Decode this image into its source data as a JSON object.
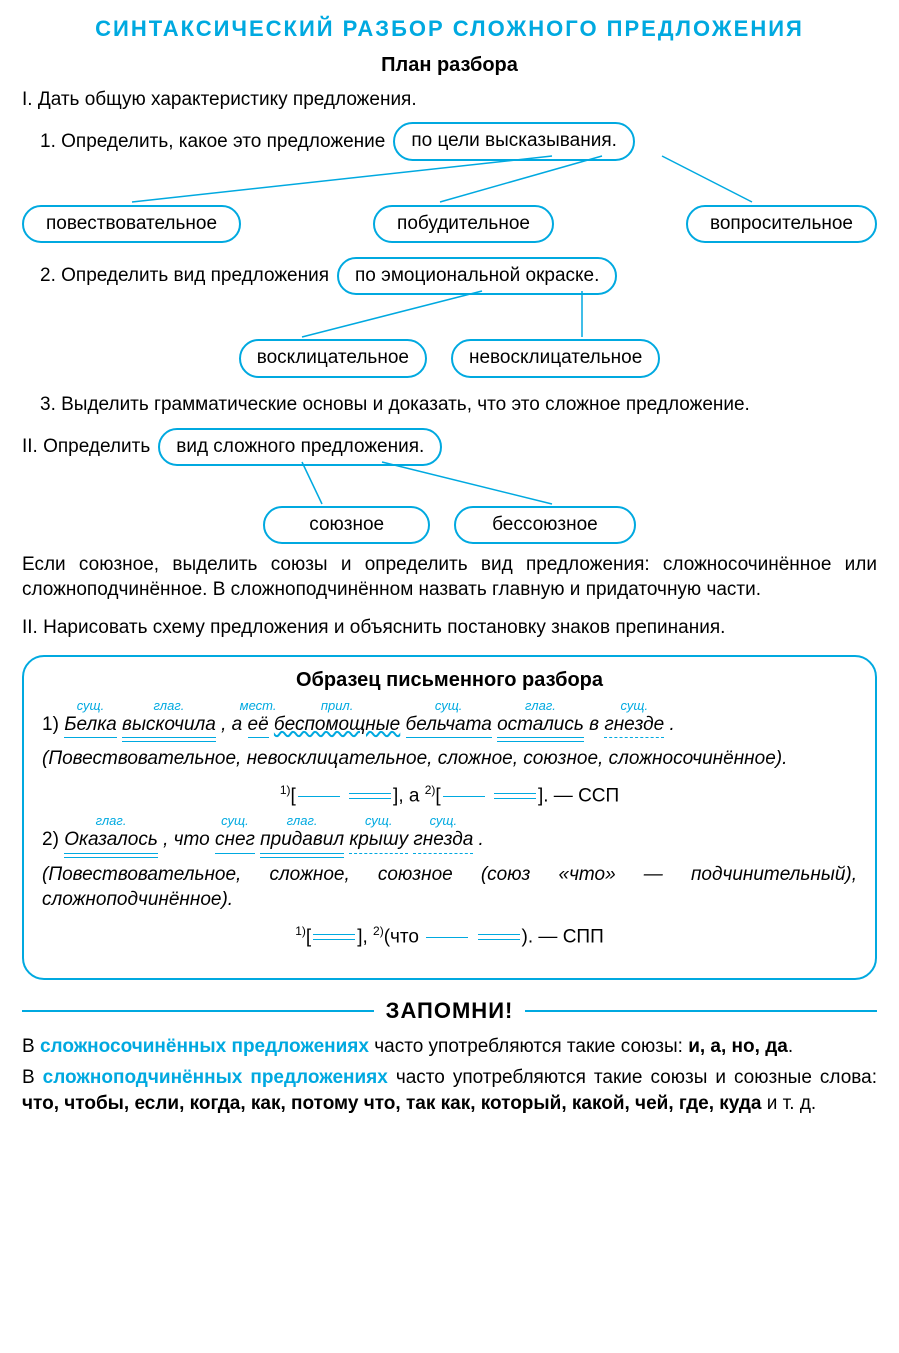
{
  "colors": {
    "accent": "#00a9e0",
    "text": "#000000",
    "bg": "#ffffff"
  },
  "title": "СИНТАКСИЧЕСКИЙ РАЗБОР СЛОЖНОГО ПРЕДЛОЖЕНИЯ",
  "subtitle": "План разбора",
  "sectionI": "I.  Дать общую характеристику предложения.",
  "step1": {
    "text": "1. Определить, какое это предложение",
    "bubble": "по цели высказывания."
  },
  "step1_options": [
    "повествовательное",
    "побудительное",
    "вопросительное"
  ],
  "step2": {
    "text": "2. Определить вид предложения",
    "bubble": "по эмоциональной окраске."
  },
  "step2_options": [
    "восклицательное",
    "невосклицательное"
  ],
  "step3": "3. Выделить грамматические основы и доказать, что это сложное предложение.",
  "sectionII": {
    "text": "II.  Определить",
    "bubble": "вид сложного предложения."
  },
  "sectionII_options": [
    "союзное",
    "бессоюзное"
  ],
  "sectionII_para": "Если союзное, выделить союзы и определить вид предложения: сложносочинённое или сложноподчинённое. В сложноподчинённом назвать главную и придаточную части.",
  "sectionIII": "II. Нарисовать схему предложения и объяснить постановку знаков препинания.",
  "example": {
    "title": "Образец письменного разбора",
    "s1_num": "1) ",
    "s1_words": [
      {
        "w": "Белка",
        "pos": "сущ.",
        "u": "single"
      },
      {
        "w": "выскочила",
        "pos": "глаг.",
        "u": "double"
      },
      {
        "w": ", а ",
        "pos": "",
        "u": ""
      },
      {
        "w": "её",
        "pos": "мест.",
        "u": "single"
      },
      {
        "w": "беспомощные",
        "pos": "прил.",
        "u": "wavy"
      },
      {
        "w": "бельчата",
        "pos": "сущ.",
        "u": "single"
      },
      {
        "w": "остались",
        "pos": "глаг.",
        "u": "double"
      },
      {
        "w": " в ",
        "pos": "",
        "u": ""
      },
      {
        "w": "гнезде",
        "pos": "сущ.",
        "u": "dash"
      },
      {
        "w": ".",
        "pos": "",
        "u": ""
      }
    ],
    "s1_char": "(Повествовательное, невосклицательное, сложное, союзное, сложносочинённое).",
    "s1_schema_suffix": ". — ССП",
    "s2_num": "2) ",
    "s2_words": [
      {
        "w": "Оказалось",
        "pos": "глаг.",
        "u": "double"
      },
      {
        "w": ", что ",
        "pos": "",
        "u": ""
      },
      {
        "w": "снег",
        "pos": "сущ.",
        "u": "single"
      },
      {
        "w": "придавил",
        "pos": "глаг.",
        "u": "double"
      },
      {
        "w": "крышу",
        "pos": "сущ.",
        "u": "dash"
      },
      {
        "w": "гнезда",
        "pos": "сущ.",
        "u": "dash"
      },
      {
        "w": ".",
        "pos": "",
        "u": ""
      }
    ],
    "s2_char": "(Повествовательное, сложное, союзное (союз «что» — подчинительный), сложноподчинённое).",
    "s2_schema_suffix": ". — СПП"
  },
  "remember": {
    "label": "ЗАПОМНИ!",
    "p1_a": "В ",
    "p1_b": "сложносочинённых предложениях",
    "p1_c": " часто употребляются такие союзы: ",
    "p1_conj": "и, а, но, да",
    "p1_d": ".",
    "p2_a": "В ",
    "p2_b": "сложноподчинённых предложениях",
    "p2_c": " часто употребляются такие союзы и союзные слова: ",
    "p2_conj": "что, чтобы, если, когда, как, потому что, так как, который, какой, чей, где, куда",
    "p2_d": " и т. д."
  }
}
